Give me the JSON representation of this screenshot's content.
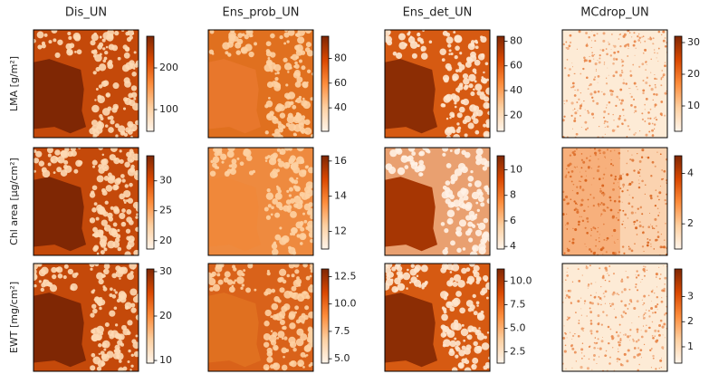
{
  "chart_data": {
    "type": "image_grid",
    "column_titles": [
      "Dis_UN",
      "Ens_prob_UN",
      "Ens_det_UN",
      "MCdrop_UN"
    ],
    "row_labels": [
      "LMA [g/m²]",
      "Chl area [µg/cm²]",
      "EWT [mg/cm²]"
    ],
    "panels": [
      [
        {
          "clim": [
            48,
            276
          ],
          "cticks": [
            100,
            200
          ]
        },
        {
          "clim": [
            21,
            98
          ],
          "cticks": [
            40,
            60,
            80
          ]
        },
        {
          "clim": [
            7,
            84
          ],
          "cticks": [
            20,
            40,
            60,
            80
          ]
        },
        {
          "clim": [
            2,
            32
          ],
          "cticks": [
            10,
            20,
            30
          ]
        }
      ],
      [
        {
          "clim": [
            18.6,
            34.2
          ],
          "cticks": [
            20,
            25,
            30
          ]
        },
        {
          "clim": [
            11,
            16.3
          ],
          "cticks": [
            12,
            14,
            16
          ]
        },
        {
          "clim": [
            3.8,
            11.1
          ],
          "cticks": [
            4,
            6,
            8,
            10
          ]
        },
        {
          "clim": [
            1.0,
            4.7
          ],
          "cticks": [
            2,
            4
          ]
        }
      ],
      [
        {
          "clim": [
            9.4,
            30.6
          ],
          "cticks": [
            10,
            20,
            30
          ]
        },
        {
          "clim": [
            4.6,
            13.2
          ],
          "cticks": [
            {
              "value": 5,
              "label": "5.0"
            },
            7.5,
            {
              "value": 10,
              "label": "10.0"
            },
            12.5
          ]
        },
        {
          "clim": [
            1.3,
            11.3
          ],
          "cticks": [
            2.5,
            {
              "value": 5,
              "label": "5.0"
            },
            7.5,
            {
              "value": 10,
              "label": "10.0"
            }
          ]
        },
        {
          "clim": [
            0.35,
            4.1
          ],
          "cticks": [
            1,
            2,
            3
          ]
        }
      ]
    ]
  }
}
